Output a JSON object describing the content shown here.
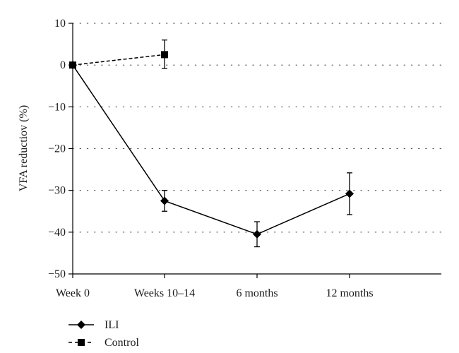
{
  "chart_data": {
    "type": "line",
    "title": "",
    "xlabel": "",
    "ylabel": "VFA reductiov (%)",
    "categories": [
      "Week 0",
      "Weeks 10–14",
      "6 months",
      "12 months"
    ],
    "ylim": [
      -50,
      10
    ],
    "yticks": [
      10,
      0,
      -10,
      -20,
      -30,
      -40,
      -50
    ],
    "ytick_labels": [
      "10",
      "0",
      "−10",
      "−20",
      "−30",
      "−40",
      "−50"
    ],
    "grid": "horizontal dotted",
    "legend_position": "bottom-left",
    "series": [
      {
        "name": "ILI",
        "marker": "diamond",
        "line_style": "solid",
        "color": "#000000",
        "values": [
          0,
          -32.5,
          -40.5,
          -30.8
        ],
        "error_low": [
          null,
          -35,
          -43.5,
          -35.8
        ],
        "error_high": [
          null,
          -30,
          -37.5,
          -25.8
        ]
      },
      {
        "name": "Control",
        "marker": "square",
        "line_style": "dashed",
        "color": "#000000",
        "values": [
          0,
          2.5,
          null,
          null
        ],
        "error_low": [
          null,
          -0.8,
          null,
          null
        ],
        "error_high": [
          null,
          6,
          null,
          null
        ]
      }
    ]
  }
}
